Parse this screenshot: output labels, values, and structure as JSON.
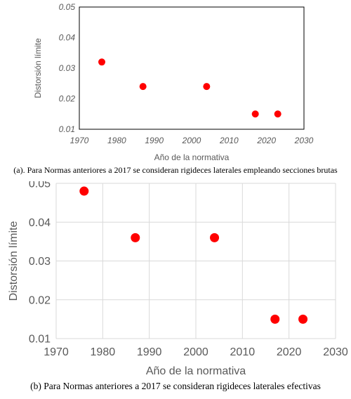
{
  "chart_data": [
    {
      "type": "scatter",
      "title": "",
      "xlabel": "Año de la normativa",
      "ylabel": "Distorsión límite",
      "xlim": [
        1970,
        2030
      ],
      "ylim": [
        0.01,
        0.05
      ],
      "xticks": [
        "1970",
        "1980",
        "1990",
        "2000",
        "2010",
        "2020",
        "2030"
      ],
      "yticks": [
        "0.01",
        "0.02",
        "0.03",
        "0.04",
        "0.05"
      ],
      "grid": false,
      "marker_color": "#ff0000",
      "points": [
        {
          "x": 1976,
          "y": 0.032
        },
        {
          "x": 1987,
          "y": 0.024
        },
        {
          "x": 2004,
          "y": 0.024
        },
        {
          "x": 2017,
          "y": 0.015
        },
        {
          "x": 2023,
          "y": 0.015
        }
      ],
      "caption": "(a). Para Normas anteriores a 2017 se consideran rigideces laterales empleando secciones brutas"
    },
    {
      "type": "scatter",
      "title": "",
      "xlabel": "Año de la normativa",
      "ylabel": "Distorsión límite",
      "xlim": [
        1970,
        2030
      ],
      "ylim": [
        0.01,
        0.05
      ],
      "xticks": [
        "1970",
        "1980",
        "1990",
        "2000",
        "2010",
        "2020",
        "2030"
      ],
      "yticks": [
        "0.01",
        "0.02",
        "0.03",
        "0.04",
        "0.05"
      ],
      "grid": true,
      "marker_color": "#ff0000",
      "points": [
        {
          "x": 1976,
          "y": 0.048
        },
        {
          "x": 1987,
          "y": 0.036
        },
        {
          "x": 2004,
          "y": 0.036
        },
        {
          "x": 2017,
          "y": 0.015
        },
        {
          "x": 2023,
          "y": 0.015
        }
      ],
      "caption": "(b)  Para Normas anteriores a 2017 se consideran rigideces laterales efectivas"
    }
  ]
}
